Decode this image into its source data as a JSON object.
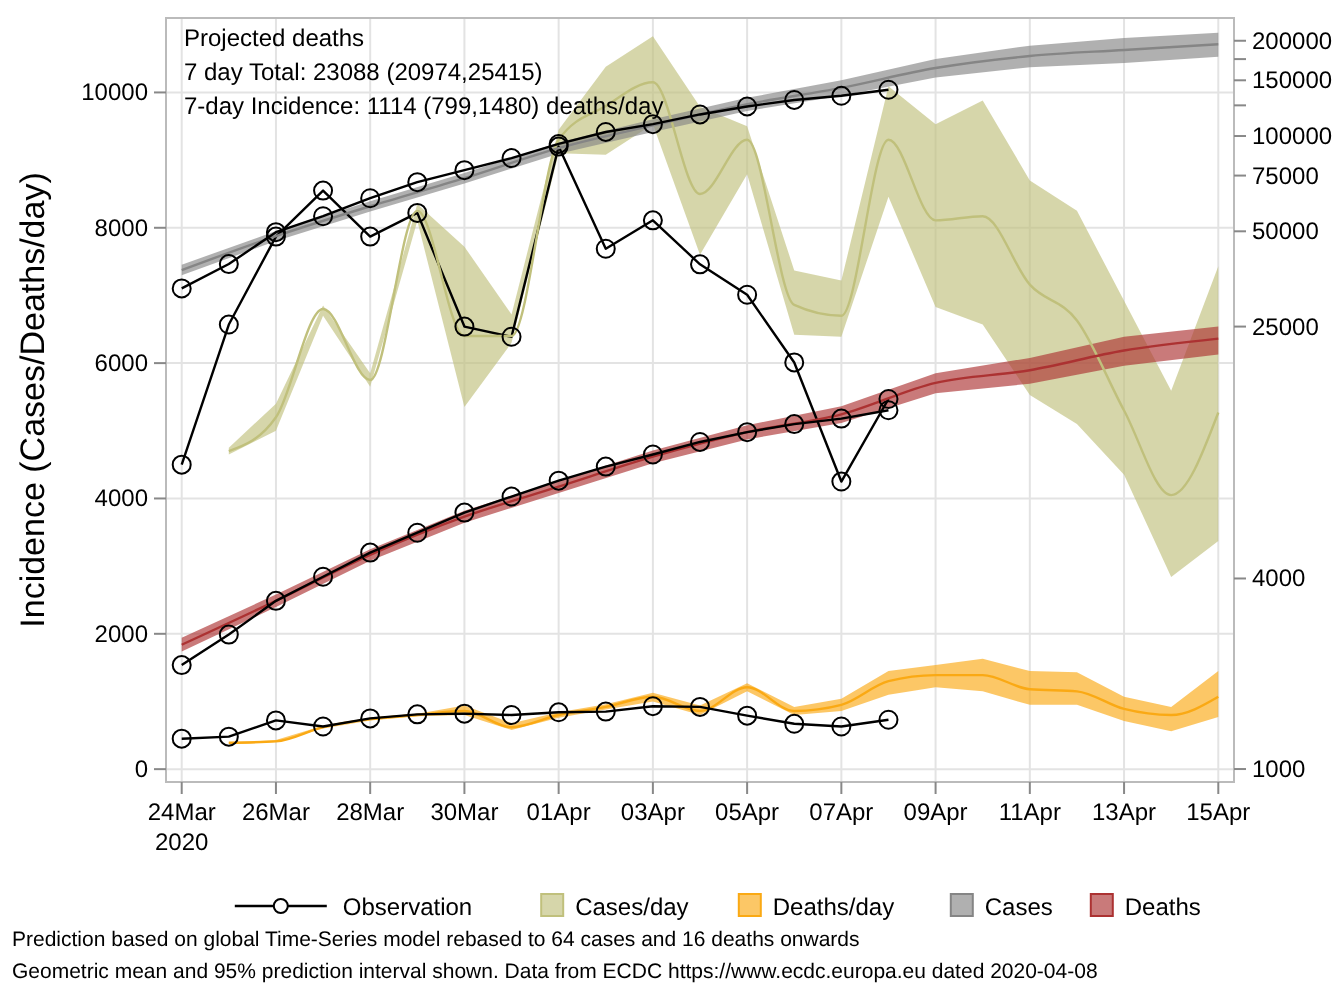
{
  "chart_data": {
    "type": "line",
    "ylabel": "Incidence (Cases/Deaths/day)",
    "xlim": [
      "2020-03-23T16:00",
      "2020-04-15T08:00"
    ],
    "xticks": [
      {
        "value": "2020-03-24",
        "label": "24Mar\n2020"
      },
      {
        "value": "2020-03-26",
        "label": "26Mar"
      },
      {
        "value": "2020-03-28",
        "label": "28Mar"
      },
      {
        "value": "2020-03-30",
        "label": "30Mar"
      },
      {
        "value": "2020-04-01",
        "label": "01Apr"
      },
      {
        "value": "2020-04-03",
        "label": "03Apr"
      },
      {
        "value": "2020-04-05",
        "label": "05Apr"
      },
      {
        "value": "2020-04-07",
        "label": "07Apr"
      },
      {
        "value": "2020-04-09",
        "label": "09Apr"
      },
      {
        "value": "2020-04-11",
        "label": "11Apr"
      },
      {
        "value": "2020-04-13",
        "label": "13Apr"
      },
      {
        "value": "2020-04-15",
        "label": "15Apr"
      }
    ],
    "ylim": [
      -190,
      11100
    ],
    "yticks": [
      0,
      2000,
      4000,
      6000,
      8000,
      10000
    ],
    "y2lim": [
      910,
      236000
    ],
    "y2ticks": [
      1000,
      4000,
      25000,
      50000,
      75000,
      100000,
      {
        "value": 125000,
        "label": null
      },
      150000,
      {
        "value": 175000,
        "label": null
      },
      200000
    ],
    "log": "y2",
    "grid": true,
    "legend": "bottom",
    "series": [
      {
        "name": "Observation",
        "color": "#000000",
        "marker": "circle",
        "x": [
          "2020-03-24",
          "2020-03-25",
          "2020-03-26",
          "2020-03-27",
          "2020-03-28",
          "2020-03-29",
          "2020-03-30",
          "2020-03-31",
          "2020-04-01",
          "2020-04-02",
          "2020-04-03",
          "2020-04-04",
          "2020-04-05",
          "2020-04-06",
          "2020-04-07",
          "2020-04-08"
        ],
        "values": [
          4500,
          6570,
          7870,
          8550,
          7870,
          8220,
          6540,
          6390,
          9200,
          7690,
          8110,
          7460,
          7010,
          6010,
          4250,
          5470
        ]
      },
      {
        "name": "Cases/day",
        "color": "#c0c07c",
        "marker": "none",
        "x": [
          "2020-03-25",
          "2020-03-26",
          "2020-03-27",
          "2020-03-28",
          "2020-03-29",
          "2020-03-30",
          "2020-03-31",
          "2020-04-01",
          "2020-04-02",
          "2020-04-03",
          "2020-04-04",
          "2020-04-05",
          "2020-04-06",
          "2020-04-07",
          "2020-04-08",
          "2020-04-09",
          "2020-04-10",
          "2020-04-11",
          "2020-04-12",
          "2020-04-13",
          "2020-04-14",
          "2020-04-15"
        ],
        "values": [
          4700,
          5200,
          6800,
          5750,
          8250,
          6400,
          6400,
          9300,
          9800,
          10150,
          8500,
          9300,
          6860,
          6700,
          9300,
          8110,
          8170,
          7160,
          6630,
          5300,
          4050,
          5270
        ],
        "lower": [
          4650,
          5000,
          6700,
          5650,
          8100,
          5350,
          6300,
          9100,
          9080,
          9530,
          7600,
          8790,
          6420,
          6390,
          8460,
          6830,
          6570,
          5530,
          5100,
          4350,
          2840,
          3370
        ],
        "upper": [
          4750,
          5400,
          6850,
          5850,
          8350,
          7720,
          6720,
          9450,
          10380,
          10830,
          9790,
          9500,
          7370,
          7220,
          10090,
          9530,
          9880,
          8700,
          8250,
          6920,
          5590,
          7430
        ]
      },
      {
        "name": "Deaths/day",
        "color": "#faa914",
        "marker": "none",
        "x": [
          "2020-03-25",
          "2020-03-26",
          "2020-03-27",
          "2020-03-28",
          "2020-03-29",
          "2020-03-30",
          "2020-03-31",
          "2020-04-01",
          "2020-04-02",
          "2020-04-03",
          "2020-04-04",
          "2020-04-05",
          "2020-04-06",
          "2020-04-07",
          "2020-04-08",
          "2020-04-09",
          "2020-04-10",
          "2020-04-11",
          "2020-04-12",
          "2020-04-13",
          "2020-04-14",
          "2020-04-15"
        ],
        "values": [
          390,
          410,
          620,
          740,
          800,
          860,
          620,
          800,
          920,
          1070,
          860,
          1210,
          860,
          950,
          1300,
          1390,
          1390,
          1180,
          1150,
          890,
          800,
          1070
        ],
        "lower": [
          370,
          400,
          600,
          720,
          780,
          800,
          580,
          760,
          880,
          1000,
          800,
          1150,
          800,
          860,
          1100,
          1210,
          1150,
          950,
          950,
          710,
          560,
          770
        ],
        "upper": [
          400,
          430,
          640,
          760,
          820,
          940,
          680,
          840,
          960,
          1130,
          940,
          1270,
          920,
          1040,
          1450,
          1540,
          1630,
          1450,
          1430,
          1070,
          920,
          1450
        ]
      },
      {
        "name": "Cases",
        "color": "#858585",
        "marker": "none",
        "axis": "y2",
        "x": [
          "2020-03-24",
          "2020-03-26",
          "2020-03-28",
          "2020-03-30",
          "2020-04-01",
          "2020-04-03",
          "2020-04-05",
          "2020-04-07",
          "2020-04-09",
          "2020-04-11",
          "2020-04-13",
          "2020-04-15"
        ],
        "values": [
          37700,
          48300,
          60000,
          73600,
          91600,
          108000,
          126000,
          142000,
          164000,
          179000,
          187000,
          195000
        ],
        "lower": [
          36300,
          46600,
          57800,
          70800,
          87900,
          103000,
          120000,
          134000,
          153000,
          165000,
          170000,
          178000
        ],
        "upper": [
          39200,
          50100,
          62200,
          76400,
          95400,
          113000,
          132000,
          150000,
          175000,
          193000,
          204000,
          212000
        ]
      },
      {
        "name": "Deaths",
        "color": "#ac3232",
        "marker": "none",
        "axis": "y2",
        "x": [
          "2020-03-24",
          "2020-03-26",
          "2020-03-28",
          "2020-03-30",
          "2020-04-01",
          "2020-04-03",
          "2020-04-05",
          "2020-04-07",
          "2020-04-09",
          "2020-04-11",
          "2020-04-13",
          "2020-04-15"
        ],
        "values": [
          2470,
          3400,
          4750,
          6270,
          7800,
          9700,
          11600,
          13200,
          16600,
          18200,
          21000,
          22900
        ],
        "lower": [
          2350,
          3250,
          4550,
          6000,
          7450,
          9250,
          11000,
          12400,
          15400,
          16500,
          18800,
          20400
        ],
        "upper": [
          2600,
          3560,
          4950,
          6550,
          8150,
          10150,
          12200,
          14000,
          17800,
          19900,
          23200,
          25000
        ]
      },
      {
        "color": "#000000",
        "marker": "circle",
        "x": [
          "2020-03-24",
          "2020-03-25",
          "2020-03-26",
          "2020-03-27",
          "2020-03-28",
          "2020-03-29",
          "2020-03-30",
          "2020-03-31",
          "2020-04-01",
          "2020-04-02",
          "2020-04-03",
          "2020-04-04",
          "2020-04-05",
          "2020-04-06",
          "2020-04-07",
          "2020-04-08"
        ],
        "values": [
          450,
          480,
          720,
          630,
          750,
          810,
          820,
          800,
          840,
          850,
          930,
          920,
          790,
          670,
          630,
          730
        ]
      },
      {
        "color": "#000000",
        "marker": "circle",
        "axis": "y2",
        "x": [
          "2020-03-24",
          "2020-03-25",
          "2020-03-26",
          "2020-03-27",
          "2020-03-28",
          "2020-03-29",
          "2020-03-30",
          "2020-03-31",
          "2020-04-01",
          "2020-04-02",
          "2020-04-03",
          "2020-04-04",
          "2020-04-05",
          "2020-04-06",
          "2020-04-07",
          "2020-04-08"
        ],
        "values": [
          33000,
          39400,
          49700,
          55800,
          63600,
          71500,
          78000,
          85200,
          94400,
          103000,
          109000,
          117000,
          124000,
          130000,
          134000,
          140000
        ]
      },
      {
        "color": "#000000",
        "marker": "circle",
        "axis": "y2",
        "x": [
          "2020-03-24",
          "2020-03-25",
          "2020-03-26",
          "2020-03-27",
          "2020-03-28",
          "2020-03-29",
          "2020-03-30",
          "2020-03-31",
          "2020-04-01",
          "2020-04-02",
          "2020-04-03",
          "2020-04-04",
          "2020-04-05",
          "2020-04-06",
          "2020-04-07",
          "2020-04-08"
        ],
        "values": [
          2130,
          2660,
          3400,
          4050,
          4830,
          5580,
          6460,
          7260,
          8150,
          9030,
          9860,
          10800,
          11600,
          12300,
          12800,
          13600
        ]
      }
    ],
    "annotations": [
      "Projected deaths",
      "7 day Total: 23088 (20974,25415)",
      "7-day Incidence: 1114 (799,1480) deaths/day",
      "Prediction based on global Time-Series model rebased to 64 cases and 16 deaths onwards",
      "Geometric mean and 95% prediction interval shown. Data from ECDC https://www.ecdc.europa.eu dated 2020-04-08"
    ]
  }
}
